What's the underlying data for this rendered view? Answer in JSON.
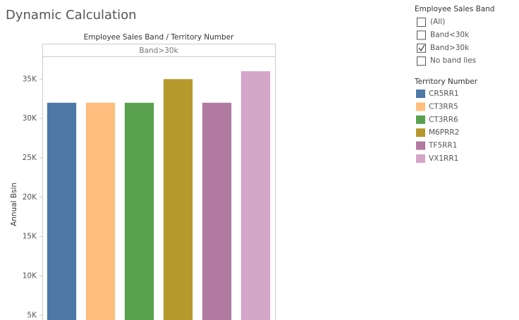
{
  "page_title": "Dynamic Calculation",
  "filter": {
    "title": "Employee Sales Band",
    "options": [
      {
        "label": "(All)",
        "checked": false
      },
      {
        "label": "Band<30k",
        "checked": false
      },
      {
        "label": "Band>30k",
        "checked": true
      },
      {
        "label": "No band lies",
        "checked": false
      }
    ]
  },
  "chart_data": {
    "type": "bar",
    "title": "Employee Sales Band  /  Territory Number",
    "panel_label": "Band>30k",
    "y_label": "Annual Bsin",
    "legend_title": "Territory Number",
    "categories": [
      "CR5RR1",
      "CT3RR5",
      "CT3RR6",
      "M6PRR2",
      "TF5RR1",
      "VX1RR1"
    ],
    "values": [
      32000,
      32000,
      32000,
      35000,
      32000,
      36000
    ],
    "colors": [
      "#4e79a7",
      "#ffbe7d",
      "#59a14f",
      "#b6992d",
      "#b07aa1",
      "#d4a6c8"
    ],
    "ylim": [
      4400,
      37800
    ],
    "yticks": [
      {
        "value": 5000,
        "label": "5K"
      },
      {
        "value": 10000,
        "label": "10K"
      },
      {
        "value": 15000,
        "label": "15K"
      },
      {
        "value": 20000,
        "label": "20K"
      },
      {
        "value": 25000,
        "label": "25K"
      },
      {
        "value": 30000,
        "label": "30K"
      },
      {
        "value": 35000,
        "label": "35K"
      }
    ],
    "grid": false
  }
}
